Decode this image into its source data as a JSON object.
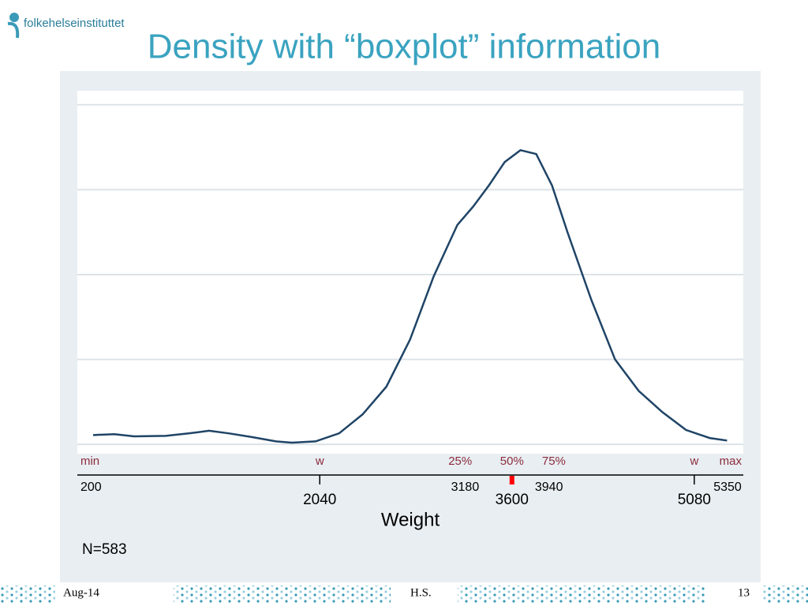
{
  "header": {
    "logo": "folkehelseinstituttet",
    "title": "Density with “boxplot” information"
  },
  "chart_data": {
    "type": "line",
    "x": [
      200,
      373,
      533,
      789,
      981,
      1141,
      1301,
      1493,
      1685,
      1813,
      2005,
      2197,
      2389,
      2581,
      2773,
      2965,
      3157,
      3285,
      3413,
      3541,
      3669,
      3797,
      3925,
      4053,
      4245,
      4437,
      4629,
      4821,
      5013,
      5205,
      5346
    ],
    "series": [
      {
        "color": "#1f4466",
        "values": [
          2.2e-05,
          2.4e-05,
          1.9e-05,
          2e-05,
          2.6e-05,
          3.2e-05,
          2.6e-05,
          1.7e-05,
          7e-06,
          4e-06,
          7e-06,
          2.6e-05,
          7.1e-05,
          0.000136,
          0.000247,
          0.000396,
          0.000517,
          0.00056,
          0.00061,
          0.000665,
          0.000693,
          0.000684,
          0.00061,
          0.000498,
          0.00034,
          0.0002,
          0.000126,
          7.6e-05,
          3.4e-05,
          1.5e-05,
          9e-06
        ]
      }
    ],
    "xlim": [
      72,
      5478
    ],
    "ylim": [
      -2.2e-05,
      0.000833
    ],
    "yticks": [
      0,
      0.0002,
      0.0004,
      0.0006,
      0.0008
    ],
    "grid": true,
    "markers": [
      {
        "label": "min",
        "value": 200,
        "ticked": false
      },
      {
        "label": "w",
        "value": 2040,
        "ticked": true
      },
      {
        "label": "25%",
        "value": 3180,
        "ticked": false
      },
      {
        "label": "50%",
        "value": 3600,
        "ticked": true,
        "color": "#ff0000"
      },
      {
        "label": "75%",
        "value": 3940,
        "ticked": false
      },
      {
        "label": "w",
        "value": 5080,
        "ticked": true
      },
      {
        "label": "max",
        "value": 5350,
        "ticked": false
      }
    ],
    "xlabel": "Weight",
    "note": "N=583"
  },
  "footer": {
    "date": "Aug-14",
    "author": "H.S.",
    "page": "13"
  }
}
